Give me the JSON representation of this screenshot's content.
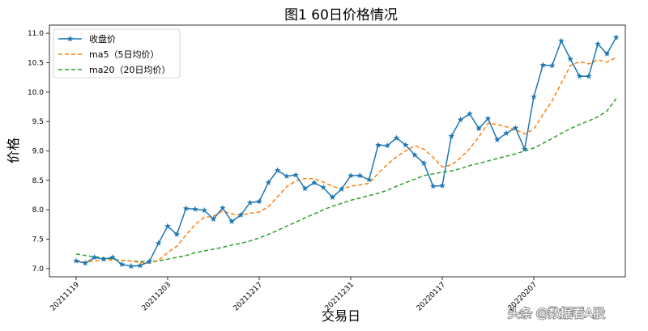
{
  "chart_data": {
    "type": "line",
    "title": "图1   60日价格情况",
    "xlabel": "交易日",
    "ylabel": "价格",
    "ylim": [
      6.86,
      11.14
    ],
    "yticks": [
      "7.0",
      "7.5",
      "8.0",
      "8.5",
      "9.0",
      "9.5",
      "10.0",
      "10.5",
      "11.0"
    ],
    "ytick_values": [
      7.0,
      7.5,
      8.0,
      8.5,
      9.0,
      9.5,
      10.0,
      10.5,
      11.0
    ],
    "xticks": [
      "20211119",
      "20211203",
      "20211217",
      "20211231",
      "20220117",
      "20220207"
    ],
    "xtick_indices": [
      0,
      10,
      20,
      30,
      40,
      50
    ],
    "grid": false,
    "legend_position": "top-left",
    "series": [
      {
        "name": "收盘价",
        "color": "#1f77b4",
        "style": "solid-star",
        "values": [
          7.13,
          7.09,
          7.19,
          7.16,
          7.19,
          7.07,
          7.04,
          7.05,
          7.12,
          7.43,
          7.72,
          7.58,
          8.02,
          8.01,
          7.99,
          7.84,
          8.03,
          7.8,
          7.91,
          8.12,
          8.14,
          8.46,
          8.67,
          8.57,
          8.59,
          8.36,
          8.46,
          8.38,
          8.21,
          8.35,
          8.58,
          8.58,
          8.51,
          9.1,
          9.09,
          9.22,
          9.1,
          8.93,
          8.79,
          8.4,
          8.41,
          9.25,
          9.53,
          9.63,
          9.38,
          9.55,
          9.19,
          9.3,
          9.39,
          9.03,
          9.92,
          10.46,
          10.45,
          10.87,
          10.56,
          10.27,
          10.27,
          10.82,
          10.65,
          10.93
        ]
      },
      {
        "name": "ma5（5日均价）",
        "color": "#ff7f0e",
        "style": "dashed",
        "values": [
          7.13,
          7.11,
          7.13,
          7.14,
          7.15,
          7.14,
          7.13,
          7.1,
          7.09,
          7.14,
          7.27,
          7.38,
          7.57,
          7.75,
          7.87,
          7.89,
          7.98,
          7.93,
          7.91,
          7.94,
          7.96,
          8.05,
          8.22,
          8.39,
          8.49,
          8.53,
          8.53,
          8.47,
          8.4,
          8.35,
          8.4,
          8.42,
          8.45,
          8.62,
          8.77,
          8.9,
          9.0,
          9.09,
          9.03,
          8.89,
          8.73,
          8.76,
          8.88,
          9.04,
          9.24,
          9.47,
          9.45,
          9.41,
          9.36,
          9.29,
          9.37,
          9.62,
          9.85,
          10.15,
          10.45,
          10.52,
          10.48,
          10.55,
          10.51,
          10.59
        ]
      },
      {
        "name": "ma20（20日均价）",
        "color": "#2ca02c",
        "style": "dashed",
        "values": [
          7.25,
          7.22,
          7.2,
          7.18,
          7.16,
          7.14,
          7.13,
          7.12,
          7.12,
          7.13,
          7.16,
          7.19,
          7.22,
          7.27,
          7.3,
          7.33,
          7.36,
          7.4,
          7.43,
          7.47,
          7.52,
          7.58,
          7.65,
          7.72,
          7.79,
          7.86,
          7.93,
          8.0,
          8.06,
          8.11,
          8.16,
          8.2,
          8.24,
          8.28,
          8.33,
          8.4,
          8.46,
          8.52,
          8.58,
          8.61,
          8.64,
          8.66,
          8.7,
          8.75,
          8.79,
          8.83,
          8.87,
          8.91,
          8.95,
          9.0,
          9.05,
          9.13,
          9.21,
          9.3,
          9.38,
          9.45,
          9.51,
          9.58,
          9.68,
          9.89
        ]
      }
    ]
  },
  "watermark": "头条 @数据看A股"
}
